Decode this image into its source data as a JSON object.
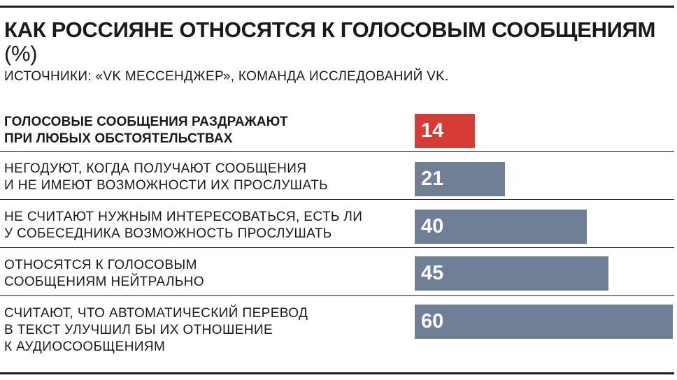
{
  "header": {
    "title": "КАК РОССИЯНЕ ОТНОСЯТСЯ К ГОЛОСОВЫМ СООБЩЕНИЯМ",
    "unit": "(%)",
    "source": "ИСТОЧНИКИ: «VK МЕССЕНДЖЕР», КОМАНДА ИССЛЕДОВАНИЙ VK."
  },
  "colors": {
    "highlight": "#d63c35",
    "bar": "#6e7f96"
  },
  "chart_data": {
    "type": "bar",
    "orientation": "horizontal",
    "title": "КАК РОССИЯНЕ ОТНОСЯТСЯ К ГОЛОСОВЫМ СООБЩЕНИЯМ",
    "unit": "(%)",
    "xlim": [
      0,
      100
    ],
    "grid": false,
    "legend": "none",
    "categories": [
      "ГОЛОСОВЫЕ СООБЩЕНИЯ РАЗДРАЖАЮТ\nПРИ ЛЮБЫХ ОБСТОЯТЕЛЬСТВАХ",
      "НЕГОДУЮТ, КОГДА ПОЛУЧАЮТ СООБЩЕНИЯ\nИ НЕ ИМЕЮТ ВОЗМОЖНОСТИ ИХ ПРОСЛУШАТЬ",
      "НЕ СЧИТАЮТ НУЖНЫМ ИНТЕРЕСОВАТЬСЯ, ЕСТЬ ЛИ\nУ СОБЕСЕДНИКА ВОЗМОЖНОСТЬ ПРОСЛУШАТЬ",
      "ОТНОСЯТСЯ К ГОЛОСОВЫМ\nСООБЩЕНИЯМ НЕЙТРАЛЬНО",
      "СЧИТАЮТ, ЧТО АВТОМАТИЧЕСКИЙ ПЕРЕВОД\nВ ТЕКСТ УЛУЧШИЛ БЫ ИХ ОТНОШЕНИЕ\nК АУДИОСООБЩЕНИЯМ"
    ],
    "values": [
      14,
      21,
      40,
      45,
      60
    ],
    "highlighted": [
      true,
      false,
      false,
      false,
      false
    ]
  }
}
